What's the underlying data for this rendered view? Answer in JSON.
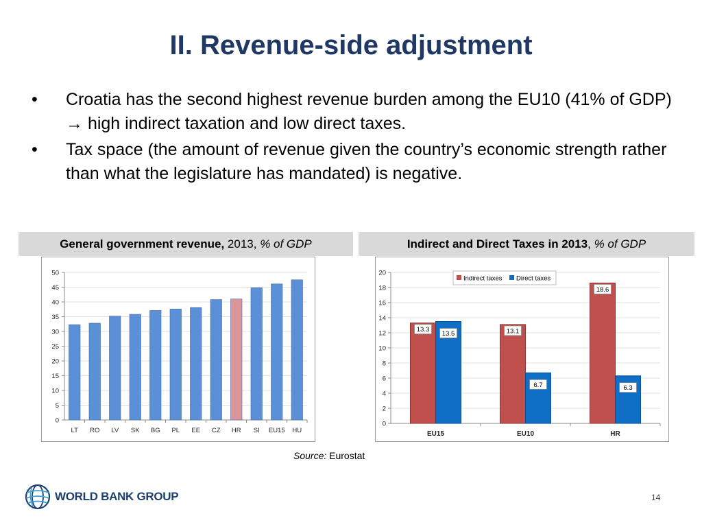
{
  "slide": {
    "title": "II. Revenue-side adjustment",
    "bullets": [
      "Croatia has the second highest revenue burden among the EU10 (41% of GDP) → high indirect taxation and low direct taxes.",
      "Tax space (the amount of revenue given the country’s economic strength rather than what the legislature has mandated) is negative."
    ],
    "bullet_symbol": "•",
    "source_label": "Source:",
    "source_value": "Eurostat",
    "logo_text": "WORLD BANK GROUP",
    "logo_icon": "globe-icon",
    "page_number": "14"
  },
  "headers": {
    "left": {
      "bold": "General government revenue,",
      "plain": " 2013, ",
      "italic": "% of GDP"
    },
    "right": {
      "bold": "Indirect and Direct Taxes in 2013",
      "plain": ", ",
      "italic": "% of GDP"
    }
  },
  "colors": {
    "title": "#1f3864",
    "bar_blue": "#5b8fd6",
    "bar_highlight": "#d99597",
    "indirect": "#c0504d",
    "direct": "#0f6fc6",
    "panel_header_bg": "#d9d9d9"
  },
  "chart_data": [
    {
      "type": "bar",
      "title": "General government revenue, 2013, % of GDP",
      "categories": [
        "LT",
        "RO",
        "LV",
        "SK",
        "BG",
        "PL",
        "EE",
        "CZ",
        "HR",
        "SI",
        "EU15",
        "HU"
      ],
      "values": [
        32.3,
        32.8,
        35.2,
        35.8,
        37.1,
        37.6,
        38.1,
        40.8,
        41.0,
        44.8,
        46.1,
        47.5
      ],
      "highlight": "HR",
      "ylim": [
        0,
        50
      ],
      "yticks": [
        0,
        5,
        10,
        15,
        20,
        25,
        30,
        35,
        40,
        45,
        50
      ],
      "xlabel": "",
      "ylabel": "",
      "grid": true,
      "legend": "none"
    },
    {
      "type": "bar",
      "title": "Indirect and Direct Taxes in 2013, % of GDP",
      "categories": [
        "EU15",
        "EU10",
        "HR"
      ],
      "series": [
        {
          "name": "Indirect taxes",
          "values": [
            13.3,
            13.1,
            18.6
          ]
        },
        {
          "name": "Direct taxes",
          "values": [
            13.5,
            6.7,
            6.3
          ]
        }
      ],
      "data_labels": [
        [
          "13.3",
          "13.1",
          "18.6"
        ],
        [
          "13.5",
          "6.7",
          "6.3"
        ]
      ],
      "ylim": [
        0,
        20
      ],
      "yticks": [
        0,
        2,
        4,
        6,
        8,
        10,
        12,
        14,
        16,
        18,
        20
      ],
      "xlabel": "",
      "ylabel": "",
      "grid": true,
      "legend": "top-center"
    }
  ]
}
